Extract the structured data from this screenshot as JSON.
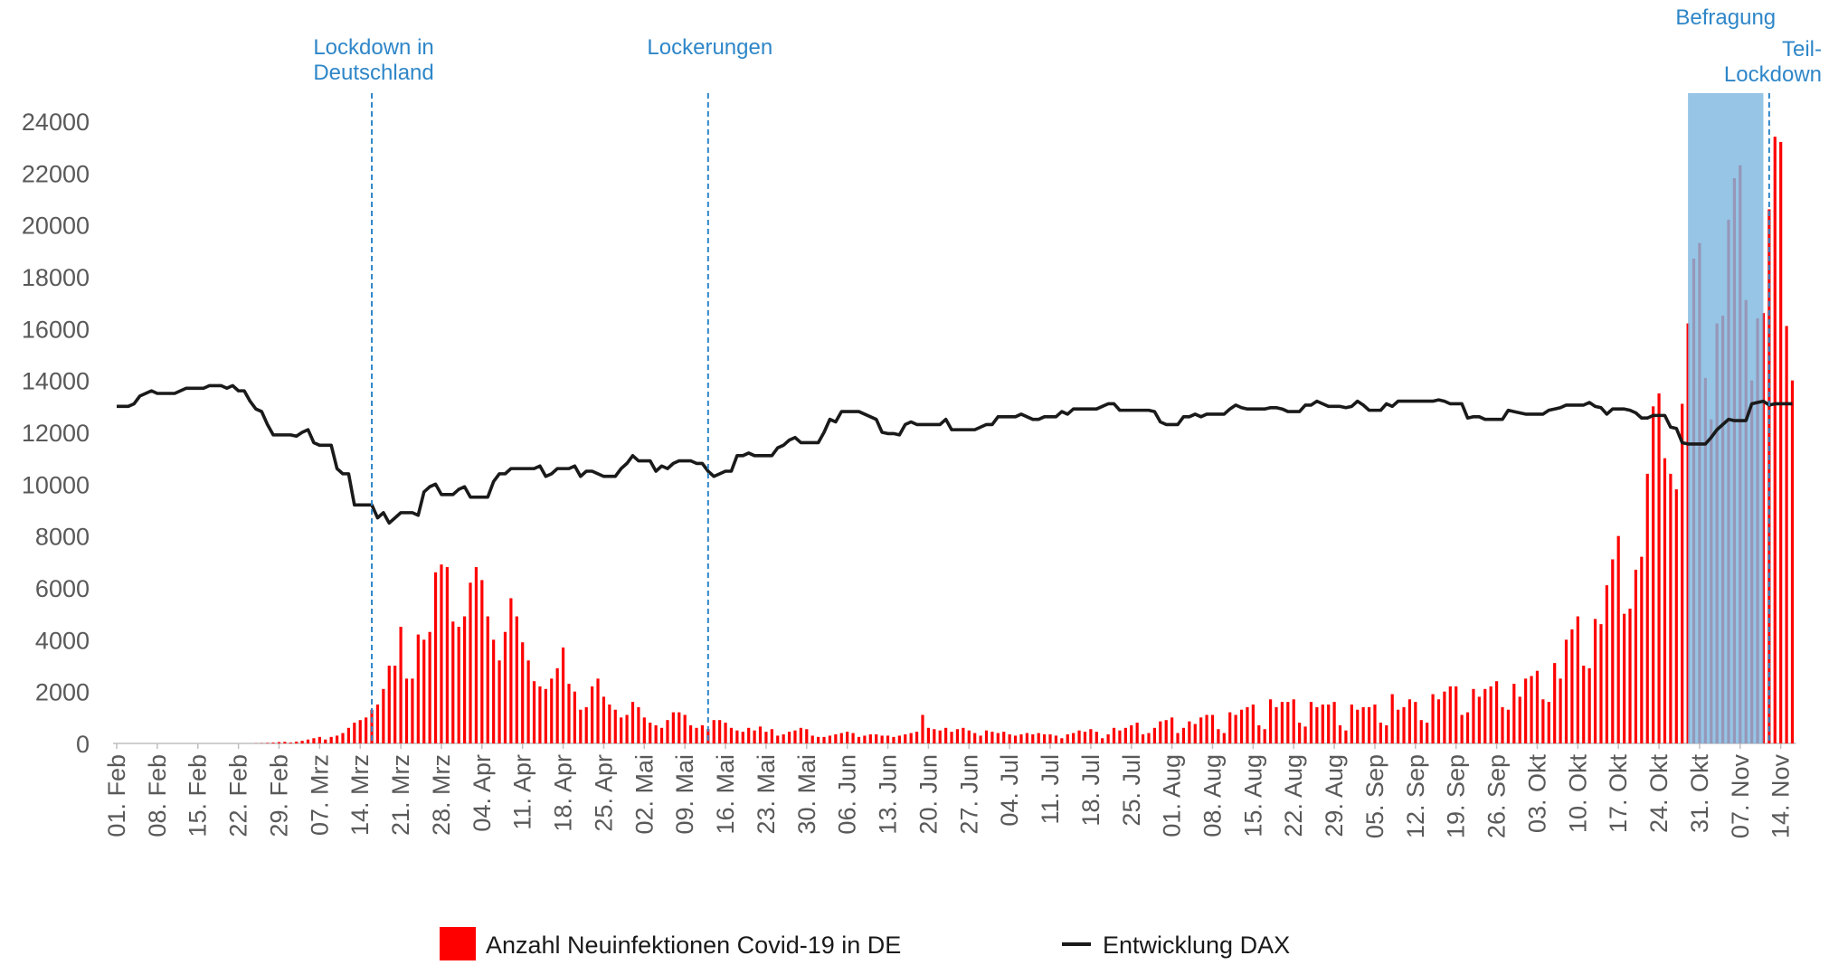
{
  "chart_data": {
    "type": "combo",
    "ylim": [
      0,
      24000
    ],
    "yticks": [
      0,
      2000,
      4000,
      6000,
      8000,
      10000,
      12000,
      14000,
      16000,
      18000,
      20000,
      22000,
      24000
    ],
    "categories": [
      "01. Feb",
      null,
      null,
      null,
      null,
      null,
      null,
      "08. Feb",
      null,
      null,
      null,
      null,
      null,
      null,
      "15. Feb",
      null,
      null,
      null,
      null,
      null,
      null,
      "22. Feb",
      null,
      null,
      null,
      null,
      null,
      null,
      "29. Feb",
      null,
      null,
      null,
      null,
      null,
      null,
      "07. Mrz",
      null,
      null,
      null,
      null,
      null,
      null,
      "14. Mrz",
      null,
      null,
      null,
      null,
      null,
      null,
      "21. Mrz",
      null,
      null,
      null,
      null,
      null,
      null,
      "28. Mrz",
      null,
      null,
      null,
      null,
      null,
      null,
      "04. Apr",
      null,
      null,
      null,
      null,
      null,
      null,
      "11. Apr",
      null,
      null,
      null,
      null,
      null,
      null,
      "18. Apr",
      null,
      null,
      null,
      null,
      null,
      null,
      "25. Apr",
      null,
      null,
      null,
      null,
      null,
      null,
      "02. Mai",
      null,
      null,
      null,
      null,
      null,
      null,
      "09. Mai",
      null,
      null,
      null,
      null,
      null,
      null,
      "16. Mai",
      null,
      null,
      null,
      null,
      null,
      null,
      "23. Mai",
      null,
      null,
      null,
      null,
      null,
      null,
      "30. Mai",
      null,
      null,
      null,
      null,
      null,
      null,
      "06. Jun",
      null,
      null,
      null,
      null,
      null,
      null,
      "13. Jun",
      null,
      null,
      null,
      null,
      null,
      null,
      "20. Jun",
      null,
      null,
      null,
      null,
      null,
      null,
      "27. Jun",
      null,
      null,
      null,
      null,
      null,
      null,
      "04. Jul",
      null,
      null,
      null,
      null,
      null,
      null,
      "11. Jul",
      null,
      null,
      null,
      null,
      null,
      null,
      "18. Jul",
      null,
      null,
      null,
      null,
      null,
      null,
      "25. Jul",
      null,
      null,
      null,
      null,
      null,
      null,
      "01. Aug",
      null,
      null,
      null,
      null,
      null,
      null,
      "08. Aug",
      null,
      null,
      null,
      null,
      null,
      null,
      "15. Aug",
      null,
      null,
      null,
      null,
      null,
      null,
      "22. Aug",
      null,
      null,
      null,
      null,
      null,
      null,
      "29. Aug",
      null,
      null,
      null,
      null,
      null,
      null,
      "05. Sep",
      null,
      null,
      null,
      null,
      null,
      null,
      "12. Sep",
      null,
      null,
      null,
      null,
      null,
      null,
      "19. Sep",
      null,
      null,
      null,
      null,
      null,
      null,
      "26. Sep",
      null,
      null,
      null,
      null,
      null,
      null,
      "03. Okt",
      null,
      null,
      null,
      null,
      null,
      null,
      "10. Okt",
      null,
      null,
      null,
      null,
      null,
      null,
      "17. Okt",
      null,
      null,
      null,
      null,
      null,
      null,
      "24. Okt",
      null,
      null,
      null,
      null,
      null,
      null,
      "31. Okt",
      null,
      null,
      null,
      null,
      null,
      null,
      "07. Nov",
      null,
      null,
      null,
      null,
      null,
      null,
      "14. Nov",
      null,
      null
    ],
    "series": [
      {
        "name": "Anzahl Neuinfektionen Covid-19 in DE",
        "type": "bar",
        "color": "#ff0000",
        "values": [
          0,
          0,
          0,
          0,
          0,
          0,
          0,
          0,
          0,
          0,
          0,
          0,
          0,
          0,
          0,
          0,
          0,
          0,
          0,
          0,
          0,
          0,
          0,
          0,
          5,
          10,
          20,
          30,
          50,
          60,
          30,
          70,
          100,
          150,
          200,
          250,
          150,
          250,
          300,
          400,
          600,
          800,
          900,
          1000,
          1300,
          1500,
          2100,
          3000,
          3000,
          4500,
          2500,
          2500,
          4200,
          4000,
          4300,
          6600,
          6900,
          6800,
          4700,
          4500,
          4900,
          6200,
          6800,
          6300,
          4900,
          4000,
          3200,
          4300,
          5600,
          4900,
          3900,
          3200,
          2400,
          2200,
          2100,
          2500,
          2900,
          3700,
          2300,
          2000,
          1300,
          1400,
          2200,
          2500,
          1800,
          1500,
          1300,
          1000,
          1100,
          1600,
          1400,
          1000,
          800,
          700,
          600,
          900,
          1200,
          1200,
          1100,
          700,
          600,
          700,
          550,
          900,
          900,
          800,
          600,
          500,
          450,
          600,
          500,
          650,
          450,
          550,
          300,
          350,
          450,
          500,
          600,
          550,
          300,
          250,
          250,
          300,
          350,
          400,
          450,
          400,
          250,
          300,
          350,
          350,
          300,
          300,
          250,
          300,
          350,
          400,
          450,
          1100,
          600,
          550,
          500,
          600,
          450,
          550,
          600,
          500,
          400,
          300,
          500,
          450,
          400,
          450,
          350,
          300,
          350,
          400,
          350,
          400,
          350,
          350,
          300,
          200,
          350,
          400,
          500,
          450,
          550,
          450,
          200,
          350,
          600,
          500,
          600,
          700,
          800,
          350,
          400,
          600,
          850,
          900,
          1000,
          400,
          600,
          850,
          750,
          1000,
          1100,
          1100,
          550,
          400,
          1200,
          1100,
          1300,
          1400,
          1500,
          700,
          550,
          1700,
          1400,
          1600,
          1600,
          1700,
          800,
          650,
          1600,
          1400,
          1500,
          1500,
          1600,
          700,
          500,
          1500,
          1300,
          1400,
          1400,
          1500,
          800,
          700,
          1900,
          1300,
          1400,
          1700,
          1600,
          900,
          800,
          1900,
          1700,
          2000,
          2200,
          2200,
          1100,
          1200,
          2100,
          1800,
          2100,
          2200,
          2400,
          1400,
          1300,
          2300,
          1800,
          2500,
          2600,
          2800,
          1700,
          1600,
          3100,
          2500,
          4000,
          4400,
          4900,
          3000,
          2900,
          4800,
          4600,
          6100,
          7100,
          8000,
          5000,
          5200,
          6700,
          7200,
          10400,
          13000,
          13500,
          11000,
          10400,
          9800,
          13100,
          16200,
          18700,
          19300,
          14100,
          12500,
          16200,
          16500,
          20200,
          21800,
          22300,
          17100,
          14000,
          16400,
          16600,
          20600,
          23400,
          23200,
          16100,
          14000
        ]
      },
      {
        "name": "Entwicklung DAX",
        "type": "line",
        "color": "#1a1a1a",
        "values": [
          13000,
          13000,
          13000,
          13100,
          13400,
          13500,
          13600,
          13500,
          13500,
          13500,
          13500,
          13600,
          13700,
          13700,
          13700,
          13700,
          13800,
          13800,
          13800,
          13700,
          13800,
          13600,
          13600,
          13200,
          12900,
          12800,
          12300,
          11900,
          11900,
          11900,
          11900,
          11850,
          12000,
          12100,
          11600,
          11500,
          11500,
          11500,
          10600,
          10400,
          10400,
          9200,
          9200,
          9200,
          9200,
          8700,
          8900,
          8500,
          8700,
          8900,
          8900,
          8900,
          8800,
          9700,
          9900,
          10000,
          9600,
          9600,
          9600,
          9800,
          9900,
          9500,
          9500,
          9500,
          9500,
          10100,
          10400,
          10400,
          10600,
          10600,
          10600,
          10600,
          10600,
          10700,
          10300,
          10400,
          10600,
          10600,
          10600,
          10700,
          10300,
          10500,
          10500,
          10400,
          10300,
          10300,
          10300,
          10600,
          10800,
          11100,
          10900,
          10900,
          10900,
          10500,
          10700,
          10600,
          10800,
          10900,
          10900,
          10900,
          10800,
          10800,
          10500,
          10300,
          10400,
          10500,
          10500,
          11100,
          11100,
          11200,
          11100,
          11100,
          11100,
          11100,
          11400,
          11500,
          11700,
          11800,
          11600,
          11600,
          11600,
          11600,
          12000,
          12500,
          12400,
          12800,
          12800,
          12800,
          12800,
          12700,
          12600,
          12500,
          12000,
          11950,
          11950,
          11900,
          12300,
          12400,
          12300,
          12300,
          12300,
          12300,
          12300,
          12500,
          12100,
          12100,
          12100,
          12100,
          12100,
          12200,
          12300,
          12300,
          12600,
          12600,
          12600,
          12600,
          12700,
          12600,
          12500,
          12500,
          12600,
          12600,
          12600,
          12800,
          12700,
          12900,
          12900,
          12900,
          12900,
          12900,
          13000,
          13100,
          13100,
          12850,
          12850,
          12850,
          12850,
          12850,
          12850,
          12800,
          12400,
          12300,
          12300,
          12300,
          12600,
          12600,
          12700,
          12600,
          12700,
          12700,
          12700,
          12700,
          12900,
          13050,
          12950,
          12900,
          12900,
          12900,
          12900,
          12950,
          12950,
          12900,
          12800,
          12800,
          12800,
          13050,
          13050,
          13200,
          13100,
          13000,
          13000,
          13000,
          12950,
          13000,
          13200,
          13050,
          12850,
          12850,
          12850,
          13100,
          13000,
          13200,
          13200,
          13200,
          13200,
          13200,
          13200,
          13200,
          13250,
          13200,
          13100,
          13100,
          13100,
          12550,
          12600,
          12600,
          12500,
          12500,
          12500,
          12500,
          12850,
          12800,
          12750,
          12700,
          12700,
          12700,
          12700,
          12850,
          12900,
          12950,
          13050,
          13050,
          13050,
          13050,
          13150,
          13000,
          12950,
          12700,
          12900,
          12900,
          12900,
          12850,
          12750,
          12550,
          12550,
          12650,
          12650,
          12650,
          12200,
          12150,
          11600,
          11550,
          11550,
          11550,
          11550,
          11800,
          12100,
          12300,
          12500,
          12450,
          12450,
          12450,
          13100,
          13150,
          13200,
          13050,
          13100,
          13100,
          13100,
          13100
        ]
      }
    ],
    "annotations": [
      {
        "lines": [
          "Lockdown in",
          "Deutschland"
        ],
        "x": 44
      },
      {
        "lines": [
          "Lockerungen"
        ],
        "x": 102
      },
      {
        "lines": [
          "Teil-",
          "Lockdown"
        ],
        "x": 285
      }
    ],
    "span": {
      "label": "Befragung",
      "x": [
        271,
        284
      ],
      "color": "#7fb8e0"
    },
    "legend": "bottom"
  }
}
